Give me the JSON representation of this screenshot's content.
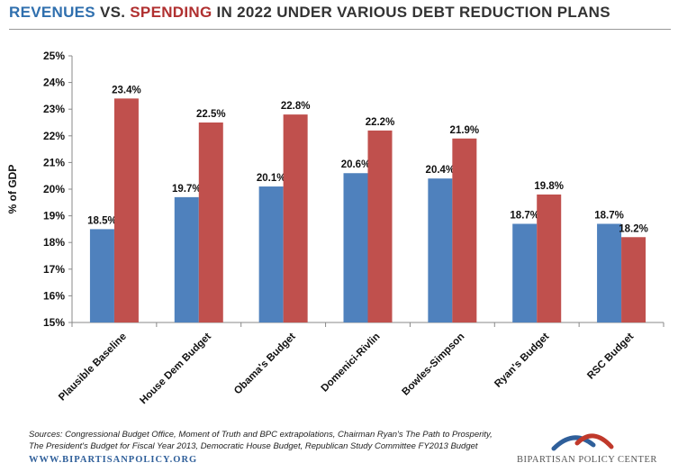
{
  "title": {
    "part1": "REVENUES",
    "part2": " VS. ",
    "part3": "SPENDING",
    "part4": " IN 2022 UNDER VARIOUS DEBT REDUCTION PLANS"
  },
  "chart_data": {
    "type": "bar",
    "title": "REVENUES VS. SPENDING IN 2022 UNDER VARIOUS DEBT REDUCTION PLANS",
    "xlabel": "",
    "ylabel": "% of GDP",
    "ylim": [
      15,
      25
    ],
    "yticks": [
      "15%",
      "16%",
      "17%",
      "18%",
      "19%",
      "20%",
      "21%",
      "22%",
      "23%",
      "24%",
      "25%"
    ],
    "categories": [
      "Plausible Baseline",
      "House Dem Budget",
      "Obama's Budget",
      "Domenici-Rivlin",
      "Bowles-Simpson",
      "Ryan's Budget",
      "RSC Budget"
    ],
    "series": [
      {
        "name": "Revenues",
        "color": "#4f81bd",
        "values": [
          18.5,
          19.7,
          20.1,
          20.6,
          20.4,
          18.7,
          18.7
        ],
        "labels": [
          "18.5%",
          "19.7%",
          "20.1%",
          "20.6%",
          "20.4%",
          "18.7%",
          "18.7%"
        ]
      },
      {
        "name": "Spending",
        "color": "#c0504d",
        "values": [
          23.4,
          22.5,
          22.8,
          22.2,
          21.9,
          19.8,
          18.2
        ],
        "labels": [
          "23.4%",
          "22.5%",
          "22.8%",
          "22.2%",
          "21.9%",
          "19.8%",
          "18.2%"
        ]
      }
    ],
    "grid": false,
    "legend": "none"
  },
  "footer": {
    "sources_line1": "Sources: Congressional Budget Office, Moment of Truth and BPC extrapolations, Chairman Ryan's The Path to Prosperity,",
    "sources_line2": "The President's Budget for Fiscal Year 2013, Democratic House Budget, Republican Study Committee FY2013 Budget",
    "website": "WWW.BIPARTISANPOLICY.ORG",
    "logo_text": "BIPARTISAN POLICY CENTER"
  },
  "colors": {
    "revenue": "#4f81bd",
    "spending": "#c0504d",
    "title_blue": "#2f6fae",
    "title_red": "#b03030"
  }
}
